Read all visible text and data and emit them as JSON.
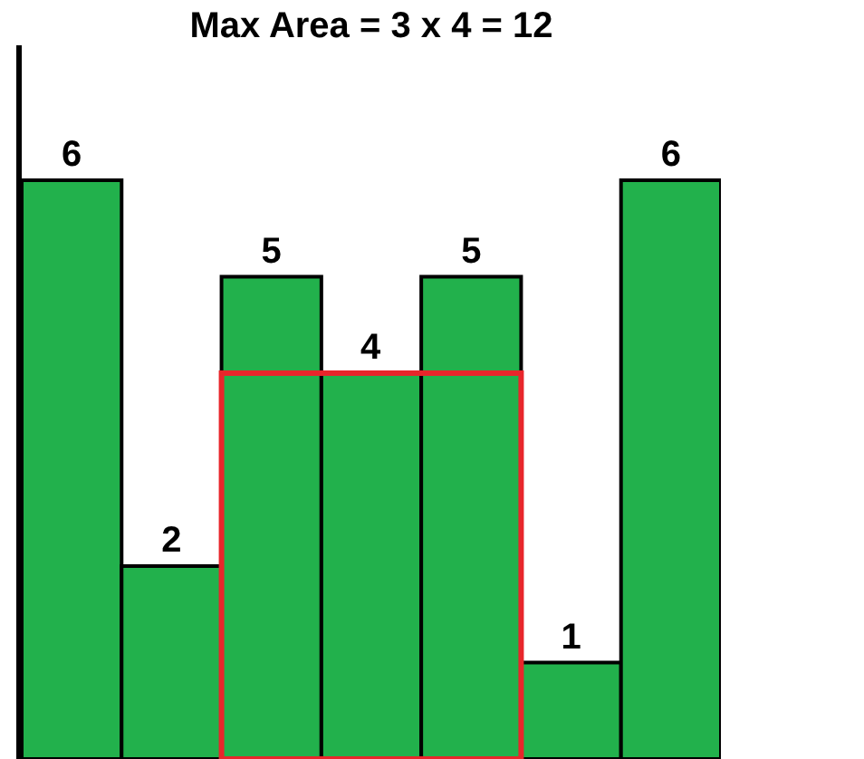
{
  "chart_data": {
    "type": "bar",
    "title": "Max Area = 3 x 4 = 12",
    "categories": [
      null,
      null,
      null,
      null,
      null,
      null,
      null
    ],
    "values": [
      6,
      2,
      5,
      4,
      5,
      1,
      6
    ],
    "color": "#22b14c",
    "data_labels": true,
    "ylim": [
      0,
      7.4
    ],
    "grid": false
  }
}
